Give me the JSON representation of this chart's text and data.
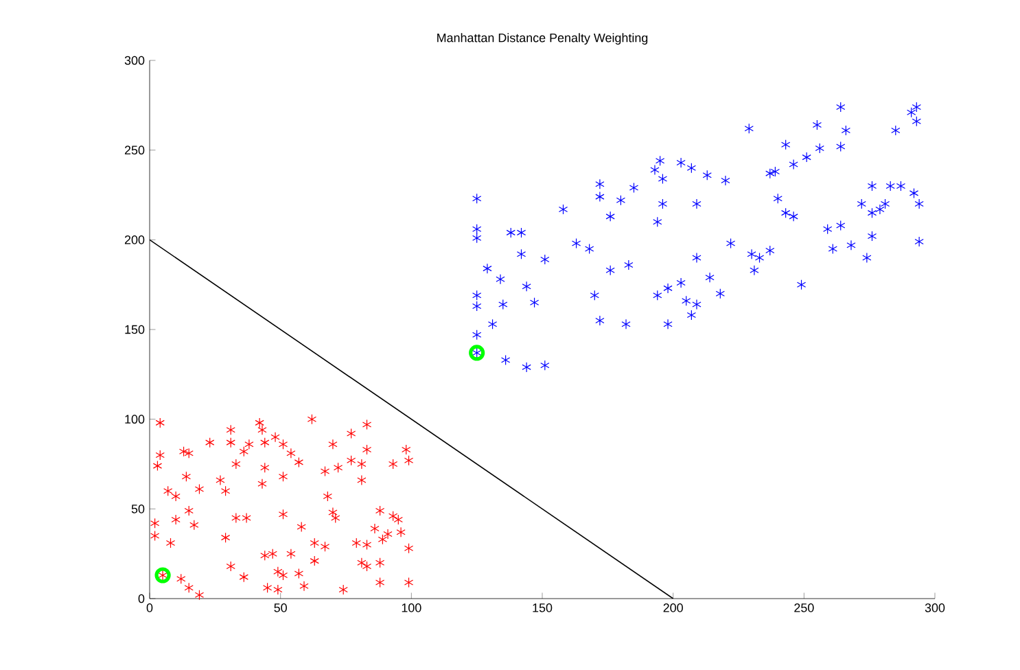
{
  "chart_data": {
    "type": "scatter",
    "title": "Manhattan Distance Penalty Weighting",
    "xlim": [
      0,
      300
    ],
    "ylim": [
      0,
      300
    ],
    "xticks": [
      0,
      50,
      100,
      150,
      200,
      250,
      300
    ],
    "yticks": [
      0,
      50,
      100,
      150,
      200,
      250,
      300
    ],
    "grid": false,
    "series": [
      {
        "type": "line",
        "color": "#000000",
        "marker": "none",
        "x": [
          0,
          200
        ],
        "values": [
          200,
          0
        ]
      },
      {
        "type": "scatter",
        "color": "#ff0000",
        "marker": "cross",
        "x": [
          4,
          42,
          62,
          83,
          31,
          43,
          77,
          23,
          31,
          38,
          44,
          48,
          51,
          70,
          13,
          36,
          54,
          83,
          98,
          4,
          15,
          99,
          3,
          33,
          44,
          57,
          67,
          72,
          77,
          81,
          93,
          14,
          27,
          51,
          81,
          43,
          19,
          29,
          7,
          10,
          68,
          15,
          33,
          37,
          51,
          70,
          71,
          88,
          93,
          95,
          2,
          10,
          17,
          58,
          86,
          96,
          2,
          91,
          29,
          89,
          8,
          63,
          67,
          79,
          83,
          99,
          47,
          44,
          54,
          63,
          31,
          81,
          88,
          83,
          5,
          12,
          49,
          51,
          57,
          36,
          88,
          99,
          15,
          19,
          45,
          49,
          59,
          74
        ],
        "values": [
          98,
          98,
          100,
          97,
          94,
          94,
          92,
          87,
          87,
          86,
          87,
          90,
          86,
          86,
          82,
          82,
          81,
          83,
          83,
          80,
          81,
          77,
          74,
          75,
          73,
          76,
          71,
          73,
          77,
          75,
          75,
          68,
          66,
          68,
          66,
          64,
          61,
          60,
          60,
          57,
          57,
          49,
          45,
          45,
          47,
          48,
          45,
          49,
          46,
          44,
          42,
          44,
          41,
          40,
          39,
          37,
          35,
          36,
          34,
          33,
          31,
          31,
          29,
          31,
          30,
          28,
          25,
          24,
          25,
          21,
          18,
          20,
          20,
          18,
          13,
          11,
          15,
          13,
          14,
          12,
          9,
          9,
          6,
          2,
          6,
          5,
          7,
          5
        ]
      },
      {
        "type": "scatter",
        "color": "#0000ff",
        "marker": "cross",
        "x": [
          125,
          158,
          172,
          172,
          185,
          180,
          195,
          193,
          196,
          203,
          207,
          176,
          196,
          209,
          194,
          125,
          125,
          138,
          142,
          163,
          168,
          209,
          142,
          151,
          129,
          134,
          144,
          176,
          183,
          125,
          125,
          135,
          147,
          170,
          194,
          198,
          203,
          205,
          209,
          207,
          131,
          172,
          182,
          198,
          125,
          125,
          136,
          144,
          151,
          264,
          229,
          255,
          266,
          285,
          291,
          293,
          293,
          243,
          256,
          264,
          251,
          246,
          213,
          220,
          239,
          237,
          276,
          283,
          287,
          292,
          294,
          240,
          243,
          246,
          272,
          281,
          276,
          279,
          259,
          264,
          276,
          222,
          294,
          230,
          233,
          237,
          261,
          268,
          274,
          231,
          214,
          249,
          218
        ],
        "values": [
          223,
          217,
          231,
          224,
          229,
          222,
          244,
          239,
          234,
          243,
          240,
          213,
          220,
          220,
          210,
          206,
          201,
          204,
          204,
          198,
          195,
          190,
          192,
          189,
          184,
          178,
          174,
          183,
          186,
          169,
          163,
          164,
          165,
          169,
          169,
          173,
          176,
          166,
          164,
          158,
          153,
          155,
          153,
          153,
          147,
          137,
          133,
          129,
          130,
          274,
          262,
          264,
          261,
          261,
          271,
          274,
          266,
          253,
          251,
          252,
          246,
          242,
          236,
          233,
          238,
          237,
          230,
          230,
          230,
          226,
          220,
          223,
          215,
          213,
          220,
          220,
          215,
          217,
          206,
          208,
          202,
          198,
          199,
          192,
          190,
          194,
          195,
          197,
          190,
          183,
          179,
          175,
          170
        ]
      },
      {
        "type": "scatter",
        "color": "#00ff00",
        "marker": "circle",
        "x": [
          5,
          125
        ],
        "values": [
          13,
          137
        ]
      }
    ]
  }
}
